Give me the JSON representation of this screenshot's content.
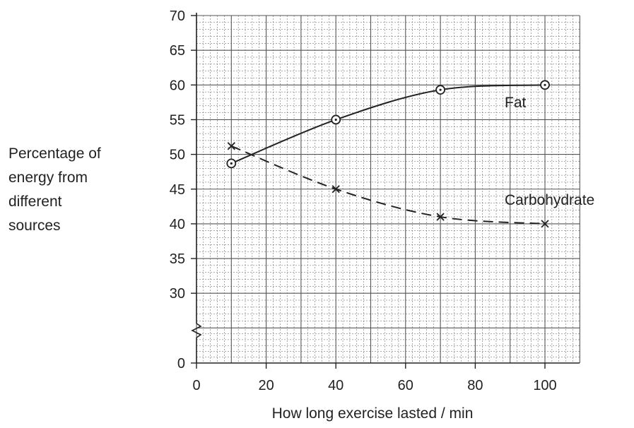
{
  "chart_data": {
    "type": "line",
    "xlabel": "How long exercise lasted / min",
    "ylabel": [
      "Percentage of",
      "energy from",
      "different",
      "sources"
    ],
    "xlim": [
      0,
      110
    ],
    "ylim_upper": [
      25,
      70
    ],
    "y_axis_break": true,
    "x_ticks": [
      0,
      20,
      40,
      60,
      80,
      100
    ],
    "y_ticks_upper": [
      30,
      35,
      40,
      45,
      50,
      55,
      60,
      65,
      70
    ],
    "y_ticks_lower": [
      0
    ],
    "grid": true,
    "x": [
      10,
      40,
      70,
      100
    ],
    "series": [
      {
        "name": "Fat",
        "values": [
          48.7,
          55,
          59.3,
          60
        ],
        "marker": "circle",
        "line": "solid"
      },
      {
        "name": "Carbohydrate",
        "values": [
          51.2,
          45,
          41,
          40
        ],
        "marker": "cross",
        "line": "dashed"
      }
    ]
  }
}
